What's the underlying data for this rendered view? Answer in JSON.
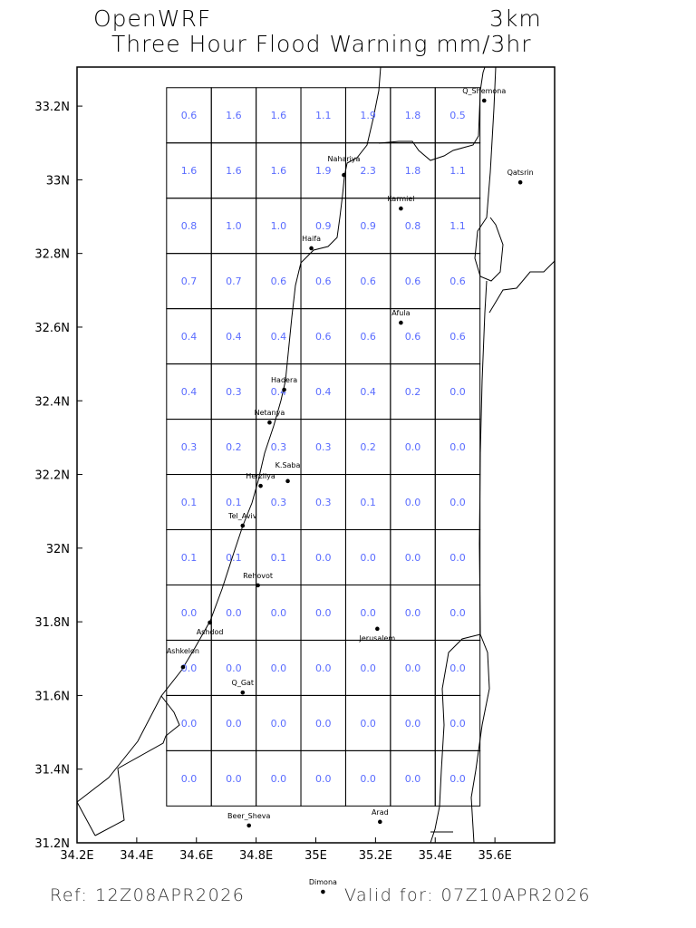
{
  "header": {
    "model": "OpenWRF",
    "resolution": "3km",
    "title": "Three Hour Flood Warning mm/3hr"
  },
  "footer": {
    "ref": "Ref: 12Z08APR2026",
    "valid": "Valid for: 07Z10APR2026"
  },
  "colors": {
    "value_text": "#5a6cff",
    "lines": "#000000"
  },
  "map": {
    "lon_range": [
      34.2,
      35.8
    ],
    "lat_range": [
      31.2,
      33.306
    ],
    "x_ticks": [
      "34.2E",
      "34.4E",
      "34.6E",
      "34.8E",
      "35E",
      "35.2E",
      "35.4E",
      "35.6E"
    ],
    "x_tick_values": [
      34.2,
      34.4,
      34.6,
      34.8,
      35.0,
      35.2,
      35.4,
      35.6
    ],
    "y_ticks": [
      "31.2N",
      "31.4N",
      "31.6N",
      "31.8N",
      "32N",
      "32.2N",
      "32.4N",
      "32.6N",
      "32.8N",
      "33N",
      "33.2N"
    ],
    "y_tick_values": [
      31.2,
      31.4,
      31.6,
      31.8,
      32.0,
      32.2,
      32.4,
      32.6,
      32.8,
      33.0,
      33.2
    ],
    "grid": {
      "lon_start": 34.5,
      "lat_top": 33.25,
      "cell_deg": 0.15,
      "values": [
        [
          "0.6",
          "1.6",
          "1.6",
          "1.1",
          "1.9",
          "1.8",
          "0.5"
        ],
        [
          "1.6",
          "1.6",
          "1.6",
          "1.9",
          "2.3",
          "1.8",
          "1.1"
        ],
        [
          "0.8",
          "1.0",
          "1.0",
          "0.9",
          "0.9",
          "0.8",
          "1.1"
        ],
        [
          "0.7",
          "0.7",
          "0.6",
          "0.6",
          "0.6",
          "0.6",
          "0.6"
        ],
        [
          "0.4",
          "0.4",
          "0.4",
          "0.6",
          "0.6",
          "0.6",
          "0.6"
        ],
        [
          "0.4",
          "0.3",
          "0.4",
          "0.4",
          "0.4",
          "0.2",
          "0.0"
        ],
        [
          "0.3",
          "0.2",
          "0.3",
          "0.3",
          "0.2",
          "0.0",
          "0.0"
        ],
        [
          "0.1",
          "0.1",
          "0.3",
          "0.3",
          "0.1",
          "0.0",
          "0.0"
        ],
        [
          "0.1",
          "0.1",
          "0.1",
          "0.0",
          "0.0",
          "0.0",
          "0.0"
        ],
        [
          "0.0",
          "0.0",
          "0.0",
          "0.0",
          "0.0",
          "0.0",
          "0.0"
        ],
        [
          "0.0",
          "0.0",
          "0.0",
          "0.0",
          "0.0",
          "0.0",
          "0.0"
        ],
        [
          "0.0",
          "0.0",
          "0.0",
          "0.0",
          "0.0",
          "0.0",
          "0.0"
        ],
        [
          "0.0",
          "0.0",
          "0.0",
          "0.0",
          "0.0",
          "0.0",
          "0.0"
        ]
      ]
    },
    "cities": [
      {
        "name": "Q_Shemona",
        "lon": 35.564,
        "lat": 33.215
      },
      {
        "name": "Qatsrin",
        "lon": 35.685,
        "lat": 32.993
      },
      {
        "name": "Nahariya",
        "lon": 35.094,
        "lat": 33.013
      },
      {
        "name": "Karmiel",
        "lon": 35.285,
        "lat": 32.922
      },
      {
        "name": "Haifa",
        "lon": 34.985,
        "lat": 32.814
      },
      {
        "name": "Afula",
        "lon": 35.285,
        "lat": 32.612
      },
      {
        "name": "Hadera",
        "lon": 34.894,
        "lat": 32.43
      },
      {
        "name": "Netanya",
        "lon": 34.845,
        "lat": 32.341
      },
      {
        "name": "Herzliya",
        "lon": 34.815,
        "lat": 32.169
      },
      {
        "name": "K.Saba",
        "lon": 34.906,
        "lat": 32.182
      },
      {
        "name": "Tel_Aviv",
        "lon": 34.755,
        "lat": 32.061
      },
      {
        "name": "Rehovot",
        "lon": 34.806,
        "lat": 31.899
      },
      {
        "name": "Ashdod",
        "lon": 34.645,
        "lat": 31.798
      },
      {
        "name": "Ashkelon",
        "lon": 34.555,
        "lat": 31.677
      },
      {
        "name": "Q_Gat",
        "lon": 34.755,
        "lat": 31.608
      },
      {
        "name": "Jerusalem",
        "lon": 35.206,
        "lat": 31.781
      },
      {
        "name": "Beer_Sheva",
        "lon": 34.776,
        "lat": 31.247
      },
      {
        "name": "Arad",
        "lon": 35.215,
        "lat": 31.257
      },
      {
        "name": "Dimona",
        "lon": 35.024,
        "lat": 31.067
      }
    ]
  }
}
